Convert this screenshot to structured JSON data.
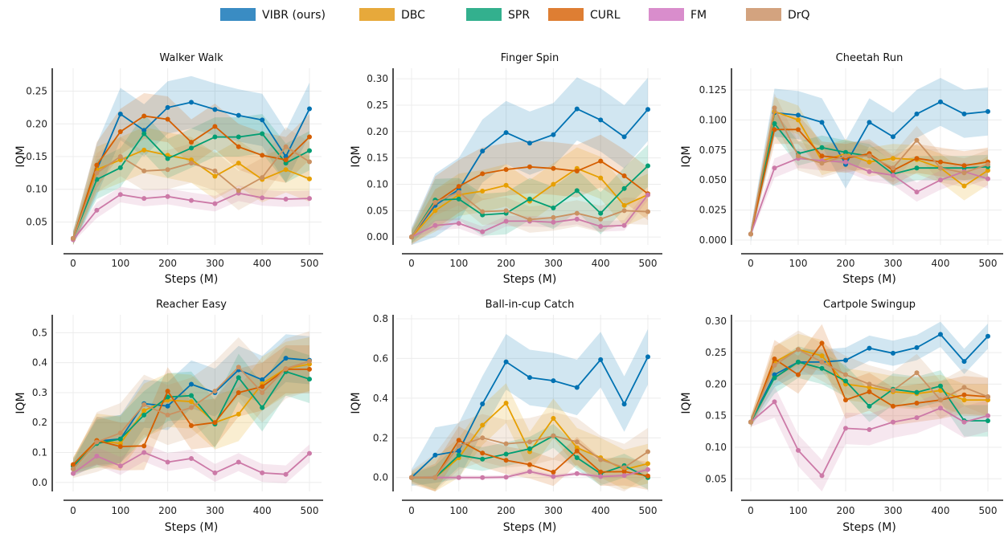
{
  "legend": {
    "placement": "top-center",
    "items": [
      {
        "name": "VIBR (ours)",
        "color": "#3a8cc3"
      },
      {
        "name": "DBC",
        "color": "#e7a93b"
      },
      {
        "name": "SPR",
        "color": "#33b08e"
      },
      {
        "name": "CURL",
        "color": "#de7e33"
      },
      {
        "name": "FM",
        "color": "#d98dcc"
      },
      {
        "name": "DrQ",
        "color": "#d3a37f"
      }
    ]
  },
  "colors": {
    "VIBR (ours)": "#0072b2",
    "DBC": "#e69f00",
    "SPR": "#009e73",
    "CURL": "#d55e00",
    "FM": "#cc79a7",
    "DrQ": "#ca9161"
  },
  "chart_data": [
    {
      "type": "line",
      "title": "Walker Walk",
      "xlabel": "Steps (M)",
      "ylabel": "IQM",
      "x": [
        0,
        50,
        100,
        150,
        200,
        250,
        300,
        350,
        400,
        450,
        500
      ],
      "xticks": [
        "0",
        "100",
        "200",
        "300",
        "400",
        "500"
      ],
      "yticks": [
        "0.05",
        "0.10",
        "0.15",
        "0.20",
        "0.25"
      ],
      "ylim": [
        0.015,
        0.285
      ],
      "grid": true,
      "series": [
        {
          "name": "VIBR (ours)",
          "values": [
            0.025,
            0.13,
            0.215,
            0.19,
            0.225,
            0.233,
            0.222,
            0.213,
            0.206,
            0.15,
            0.223
          ],
          "band": 0.04
        },
        {
          "name": "DBC",
          "values": [
            0.025,
            0.13,
            0.145,
            0.16,
            0.152,
            0.145,
            0.12,
            0.14,
            0.115,
            0.13,
            0.116
          ],
          "band": 0.035
        },
        {
          "name": "SPR",
          "values": [
            0.025,
            0.115,
            0.133,
            0.185,
            0.147,
            0.163,
            0.18,
            0.18,
            0.185,
            0.14,
            0.159
          ],
          "band": 0.03
        },
        {
          "name": "CURL",
          "values": [
            0.025,
            0.137,
            0.188,
            0.212,
            0.207,
            0.172,
            0.196,
            0.165,
            0.152,
            0.145,
            0.18
          ],
          "band": 0.035
        },
        {
          "name": "FM",
          "values": [
            0.023,
            0.068,
            0.092,
            0.086,
            0.089,
            0.083,
            0.078,
            0.094,
            0.087,
            0.085,
            0.086
          ],
          "band": 0.012
        },
        {
          "name": "DrQ",
          "values": [
            0.025,
            0.125,
            0.15,
            0.128,
            0.13,
            0.14,
            0.128,
            0.098,
            0.118,
            0.165,
            0.142
          ],
          "band": 0.03
        }
      ]
    },
    {
      "type": "line",
      "title": "Finger Spin",
      "xlabel": "Steps (M)",
      "ylabel": "IQM",
      "x": [
        0,
        50,
        100,
        150,
        200,
        250,
        300,
        350,
        400,
        450,
        500
      ],
      "xticks": [
        "0",
        "100",
        "200",
        "300",
        "400",
        "500"
      ],
      "yticks": [
        "0.00",
        "0.05",
        "0.10",
        "0.15",
        "0.20",
        "0.25",
        "0.30"
      ],
      "ylim": [
        -0.015,
        0.32
      ],
      "grid": true,
      "series": [
        {
          "name": "VIBR (ours)",
          "values": [
            0.0,
            0.06,
            0.09,
            0.163,
            0.198,
            0.178,
            0.194,
            0.243,
            0.222,
            0.19,
            0.242
          ],
          "band": 0.06
        },
        {
          "name": "DBC",
          "values": [
            0.0,
            0.05,
            0.08,
            0.087,
            0.098,
            0.068,
            0.1,
            0.13,
            0.112,
            0.06,
            0.08
          ],
          "band": 0.04
        },
        {
          "name": "SPR",
          "values": [
            0.0,
            0.07,
            0.072,
            0.042,
            0.045,
            0.072,
            0.055,
            0.088,
            0.045,
            0.092,
            0.135
          ],
          "band": 0.04
        },
        {
          "name": "CURL",
          "values": [
            0.0,
            0.065,
            0.096,
            0.12,
            0.128,
            0.133,
            0.13,
            0.125,
            0.144,
            0.116,
            0.082
          ],
          "band": 0.05
        },
        {
          "name": "FM",
          "values": [
            0.0,
            0.022,
            0.026,
            0.01,
            0.03,
            0.03,
            0.028,
            0.034,
            0.02,
            0.022,
            0.08
          ],
          "band": 0.01
        },
        {
          "name": "DrQ",
          "values": [
            0.0,
            0.066,
            0.085,
            0.048,
            0.05,
            0.033,
            0.037,
            0.045,
            0.034,
            0.05,
            0.048
          ],
          "band": 0.025
        }
      ]
    },
    {
      "type": "line",
      "title": "Cheetah Run",
      "xlabel": "Steps (M)",
      "ylabel": "IQM",
      "x": [
        0,
        50,
        100,
        150,
        200,
        250,
        300,
        350,
        400,
        450,
        500
      ],
      "xticks": [
        "0",
        "100",
        "200",
        "300",
        "400",
        "500"
      ],
      "yticks": [
        "0.000",
        "0.025",
        "0.050",
        "0.075",
        "0.100",
        "0.125"
      ],
      "ylim": [
        -0.004,
        0.143
      ],
      "grid": true,
      "series": [
        {
          "name": "VIBR (ours)",
          "values": [
            0.005,
            0.106,
            0.104,
            0.098,
            0.063,
            0.098,
            0.086,
            0.105,
            0.115,
            0.105,
            0.107
          ],
          "band": 0.02
        },
        {
          "name": "DBC",
          "values": [
            0.005,
            0.107,
            0.1,
            0.066,
            0.072,
            0.065,
            0.068,
            0.067,
            0.06,
            0.045,
            0.058
          ],
          "band": 0.012
        },
        {
          "name": "SPR",
          "values": [
            0.005,
            0.097,
            0.072,
            0.077,
            0.073,
            0.07,
            0.055,
            0.06,
            0.06,
            0.06,
            0.061
          ],
          "band": 0.01
        },
        {
          "name": "CURL",
          "values": [
            0.005,
            0.092,
            0.092,
            0.07,
            0.068,
            0.072,
            0.058,
            0.068,
            0.065,
            0.062,
            0.065
          ],
          "band": 0.012
        },
        {
          "name": "FM",
          "values": [
            0.005,
            0.06,
            0.068,
            0.066,
            0.065,
            0.057,
            0.054,
            0.04,
            0.05,
            0.057,
            0.051
          ],
          "band": 0.008
        },
        {
          "name": "DrQ",
          "values": [
            0.005,
            0.11,
            0.07,
            0.064,
            0.07,
            0.07,
            0.06,
            0.083,
            0.06,
            0.056,
            0.063
          ],
          "band": 0.012
        }
      ]
    },
    {
      "type": "line",
      "title": "Reacher Easy",
      "xlabel": "Steps (M)",
      "ylabel": "IQM",
      "x": [
        0,
        50,
        100,
        150,
        200,
        250,
        300,
        350,
        400,
        450,
        500
      ],
      "xticks": [
        "0",
        "100",
        "200",
        "300",
        "400",
        "500"
      ],
      "yticks": [
        "0.0",
        "0.1",
        "0.2",
        "0.3",
        "0.4",
        "0.5"
      ],
      "ylim": [
        -0.03,
        0.56
      ],
      "grid": true,
      "series": [
        {
          "name": "VIBR (ours)",
          "values": [
            0.045,
            0.138,
            0.145,
            0.263,
            0.255,
            0.328,
            0.3,
            0.376,
            0.343,
            0.415,
            0.408
          ],
          "band": 0.08
        },
        {
          "name": "DBC",
          "values": [
            0.055,
            0.14,
            0.13,
            0.24,
            0.275,
            0.27,
            0.2,
            0.228,
            0.33,
            0.38,
            0.395
          ],
          "band": 0.09
        },
        {
          "name": "SPR",
          "values": [
            0.055,
            0.13,
            0.145,
            0.225,
            0.285,
            0.29,
            0.195,
            0.35,
            0.25,
            0.37,
            0.345
          ],
          "band": 0.08
        },
        {
          "name": "CURL",
          "values": [
            0.06,
            0.14,
            0.12,
            0.122,
            0.305,
            0.19,
            0.2,
            0.3,
            0.32,
            0.378,
            0.378
          ],
          "band": 0.08
        },
        {
          "name": "FM",
          "values": [
            0.03,
            0.088,
            0.055,
            0.1,
            0.068,
            0.08,
            0.032,
            0.068,
            0.032,
            0.027,
            0.097
          ],
          "band": 0.03
        },
        {
          "name": "DrQ",
          "values": [
            0.045,
            0.135,
            0.165,
            0.26,
            0.225,
            0.25,
            0.305,
            0.385,
            0.3,
            0.38,
            0.405
          ],
          "band": 0.1
        }
      ]
    },
    {
      "type": "line",
      "title": "Ball-in-cup Catch",
      "xlabel": "Steps (M)",
      "ylabel": "IQM",
      "x": [
        0,
        50,
        100,
        150,
        200,
        250,
        300,
        350,
        400,
        450,
        500
      ],
      "xticks": [
        "0",
        "100",
        "200",
        "300",
        "400",
        "500"
      ],
      "yticks": [
        "0.0",
        "0.2",
        "0.4",
        "0.6",
        "0.8"
      ],
      "ylim": [
        -0.07,
        0.82
      ],
      "grid": true,
      "series": [
        {
          "name": "VIBR (ours)",
          "values": [
            0.0,
            0.113,
            0.134,
            0.371,
            0.583,
            0.504,
            0.488,
            0.454,
            0.594,
            0.37,
            0.608
          ],
          "band": 0.14
        },
        {
          "name": "DBC",
          "values": [
            0.0,
            0.0,
            0.1,
            0.264,
            0.375,
            0.13,
            0.298,
            0.15,
            0.1,
            0.04,
            0.07
          ],
          "band": 0.1
        },
        {
          "name": "SPR",
          "values": [
            0.0,
            0.0,
            0.113,
            0.093,
            0.118,
            0.145,
            0.21,
            0.1,
            0.02,
            0.06,
            0.0
          ],
          "band": 0.06
        },
        {
          "name": "CURL",
          "values": [
            0.0,
            0.0,
            0.188,
            0.123,
            0.087,
            0.065,
            0.027,
            0.134,
            0.028,
            0.03,
            0.008
          ],
          "band": 0.07
        },
        {
          "name": "FM",
          "values": [
            0.0,
            0.0,
            0.0,
            0.0,
            0.002,
            0.03,
            0.005,
            0.02,
            0.005,
            0.01,
            0.04
          ],
          "band": 0.01
        },
        {
          "name": "DrQ",
          "values": [
            0.0,
            0.0,
            0.16,
            0.2,
            0.17,
            0.18,
            0.21,
            0.18,
            0.09,
            0.05,
            0.13
          ],
          "band": 0.12
        }
      ]
    },
    {
      "type": "line",
      "title": "Cartpole Swingup",
      "xlabel": "Steps (M)",
      "ylabel": "IQM",
      "x": [
        0,
        50,
        100,
        150,
        200,
        250,
        300,
        350,
        400,
        450,
        500
      ],
      "xticks": [
        "0",
        "100",
        "200",
        "300",
        "400",
        "500"
      ],
      "yticks": [
        "0.05",
        "0.10",
        "0.15",
        "0.20",
        "0.25",
        "0.30"
      ],
      "ylim": [
        0.03,
        0.31
      ],
      "grid": true,
      "series": [
        {
          "name": "VIBR (ours)",
          "values": [
            0.14,
            0.215,
            0.235,
            0.235,
            0.238,
            0.257,
            0.249,
            0.258,
            0.279,
            0.236,
            0.276
          ],
          "band": 0.02
        },
        {
          "name": "DBC",
          "values": [
            0.14,
            0.235,
            0.255,
            0.245,
            0.2,
            0.195,
            0.188,
            0.185,
            0.19,
            0.175,
            0.175
          ],
          "band": 0.025
        },
        {
          "name": "SPR",
          "values": [
            0.14,
            0.21,
            0.235,
            0.225,
            0.205,
            0.165,
            0.192,
            0.187,
            0.197,
            0.142,
            0.142
          ],
          "band": 0.025
        },
        {
          "name": "CURL",
          "values": [
            0.14,
            0.24,
            0.215,
            0.265,
            0.175,
            0.188,
            0.165,
            0.17,
            0.175,
            0.183,
            0.18
          ],
          "band": 0.03
        },
        {
          "name": "FM",
          "values": [
            0.14,
            0.172,
            0.095,
            0.055,
            0.13,
            0.128,
            0.14,
            0.147,
            0.162,
            0.14,
            0.15
          ],
          "band": 0.025
        },
        {
          "name": "DrQ",
          "values": [
            0.14,
            0.23,
            0.255,
            0.235,
            0.215,
            0.2,
            0.19,
            0.218,
            0.175,
            0.195,
            0.18
          ],
          "band": 0.03
        }
      ]
    }
  ]
}
